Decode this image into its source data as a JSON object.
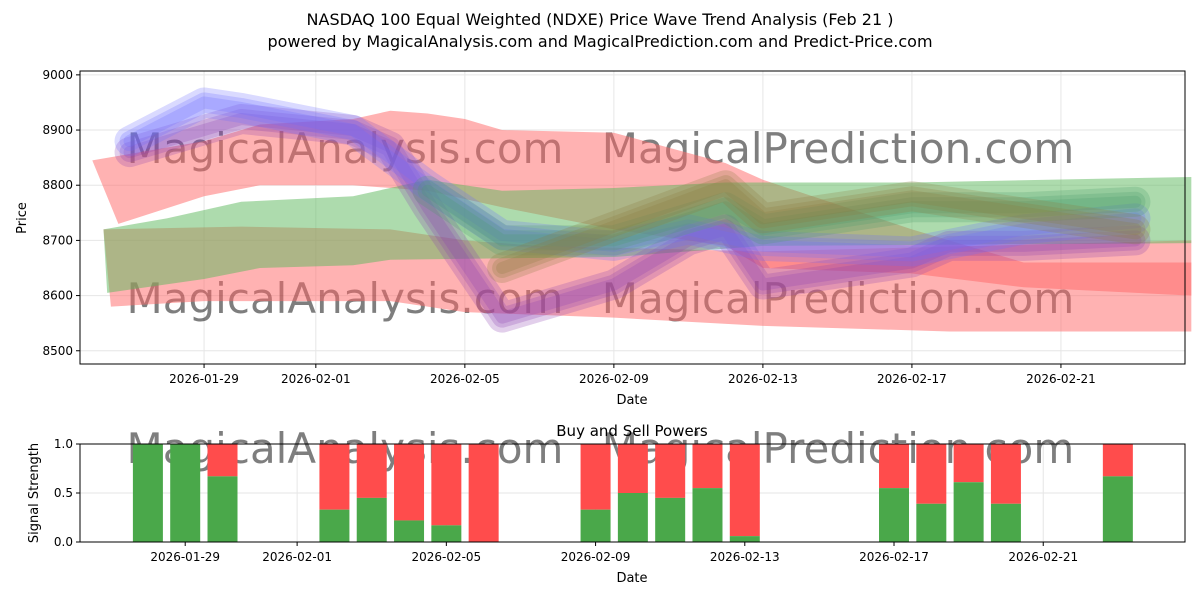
{
  "chart_data": [
    {
      "type": "area",
      "title": "NASDAQ 100 Equal Weighted (NDXE) Price Wave Trend Analysis (Feb 21 )",
      "subtitle": "powered by MagicalAnalysis.com and MagicalPrediction.com and Predict-Price.com",
      "xlabel": "Date",
      "ylabel": "Price",
      "xlim": [
        "2026-01-25.67",
        "2026-02-24.33"
      ],
      "ylim": [
        8476,
        9007
      ],
      "yticks": [
        8500,
        8600,
        8700,
        8800,
        8900,
        9000
      ],
      "xticks": [
        "2026-01-29",
        "2026-02-01",
        "2026-02-05",
        "2026-02-09",
        "2026-02-13",
        "2026-02-17",
        "2026-02-21"
      ],
      "watermarks": [
        "MagicalAnalysis.com",
        "MagicalPrediction.com"
      ],
      "bands": [
        {
          "name": "red-band-upper",
          "color": "#ff6666",
          "upper": [
            [
              "01-26",
              8845
            ],
            [
              "01-29",
              8880
            ],
            [
              "01-30.5",
              8910
            ],
            [
              "02-02",
              8920
            ],
            [
              "02-03",
              8935
            ],
            [
              "02-04",
              8930
            ],
            [
              "02-05",
              8920
            ],
            [
              "02-06",
              8900
            ],
            [
              "02-09",
              8895
            ],
            [
              "02-12",
              8840
            ],
            [
              "02-13",
              8810
            ],
            [
              "02-17",
              8720
            ],
            [
              "02-20",
              8660
            ],
            [
              "02-24.5",
              8660
            ]
          ],
          "lower": [
            [
              "01-26.7",
              8730
            ],
            [
              "01-29",
              8780
            ],
            [
              "01-30.5",
              8800
            ],
            [
              "02-02",
              8800
            ],
            [
              "02-04",
              8790
            ],
            [
              "02-06",
              8760
            ],
            [
              "02-09",
              8720
            ],
            [
              "02-12",
              8690
            ],
            [
              "02-13",
              8650
            ],
            [
              "02-17",
              8640
            ],
            [
              "02-20",
              8615
            ],
            [
              "02-24.5",
              8600
            ]
          ]
        },
        {
          "name": "red-band-lower",
          "color": "#ff6666",
          "upper": [
            [
              "01-26.3",
              8720
            ],
            [
              "01-30",
              8725
            ],
            [
              "02-03",
              8720
            ],
            [
              "02-05",
              8700
            ],
            [
              "02-07",
              8690
            ],
            [
              "02-13",
              8680
            ],
            [
              "02-24.5",
              8700
            ]
          ],
          "lower": [
            [
              "01-26.5",
              8580
            ],
            [
              "01-29",
              8590
            ],
            [
              "02-03",
              8590
            ],
            [
              "02-05",
              8570
            ],
            [
              "02-09",
              8560
            ],
            [
              "02-13",
              8545
            ],
            [
              "02-18",
              8535
            ],
            [
              "02-24.5",
              8535
            ]
          ]
        },
        {
          "name": "green-band",
          "color": "#5cb85c",
          "upper": [
            [
              "01-26.3",
              8720
            ],
            [
              "01-28",
              8740
            ],
            [
              "01-30",
              8770
            ],
            [
              "02-02",
              8780
            ],
            [
              "02-04",
              8810
            ],
            [
              "02-06",
              8790
            ],
            [
              "02-09",
              8795
            ],
            [
              "02-12",
              8805
            ],
            [
              "02-17",
              8805
            ],
            [
              "02-24.5",
              8815
            ]
          ],
          "lower": [
            [
              "01-26.4",
              8605
            ],
            [
              "01-29",
              8630
            ],
            [
              "01-30.5",
              8650
            ],
            [
              "02-02",
              8655
            ],
            [
              "02-03",
              8665
            ],
            [
              "02-09",
              8670
            ],
            [
              "02-13",
              8690
            ],
            [
              "02-24.5",
              8695
            ]
          ]
        }
      ],
      "waves": [
        {
          "name": "purple-wave",
          "color": "#8a3fb0",
          "points": [
            [
              "01-27",
              8860
            ],
            [
              "01-29",
              8900
            ],
            [
              "01-30",
              8920
            ],
            [
              "02-02",
              8900
            ],
            [
              "02-03",
              8870
            ],
            [
              "02-04",
              8760
            ],
            [
              "02-06",
              8560
            ],
            [
              "02-09",
              8620
            ],
            [
              "02-11",
              8700
            ],
            [
              "02-12",
              8720
            ],
            [
              "02-13",
              8620
            ],
            [
              "02-17",
              8660
            ],
            [
              "02-18",
              8690
            ],
            [
              "02-20",
              8690
            ],
            [
              "02-23",
              8700
            ]
          ]
        },
        {
          "name": "blue-wave",
          "color": "#6a6aff",
          "points": [
            [
              "01-27",
              8880
            ],
            [
              "01-29",
              8950
            ],
            [
              "01-30",
              8940
            ],
            [
              "02-02",
              8900
            ],
            [
              "02-04",
              8800
            ],
            [
              "02-06",
              8710
            ],
            [
              "02-09",
              8690
            ],
            [
              "02-11",
              8720
            ],
            [
              "02-13",
              8690
            ],
            [
              "02-17",
              8680
            ],
            [
              "02-20",
              8720
            ],
            [
              "02-23",
              8740
            ]
          ]
        },
        {
          "name": "green-wave",
          "color": "#4a9a6a",
          "points": [
            [
              "02-04",
              8790
            ],
            [
              "02-06",
              8700
            ],
            [
              "02-09",
              8700
            ],
            [
              "02-12",
              8760
            ],
            [
              "02-13",
              8720
            ],
            [
              "02-17",
              8760
            ],
            [
              "02-20",
              8760
            ],
            [
              "02-23",
              8770
            ]
          ]
        },
        {
          "name": "olive-wave",
          "color": "#8a7a40",
          "points": [
            [
              "02-06",
              8650
            ],
            [
              "02-12",
              8800
            ],
            [
              "02-13",
              8740
            ],
            [
              "02-17",
              8780
            ],
            [
              "02-23",
              8720
            ]
          ]
        }
      ]
    },
    {
      "type": "bar",
      "title": "Buy and Sell Powers",
      "xlabel": "Date",
      "ylabel": "Signal Strength",
      "ylim": [
        0,
        1
      ],
      "yticks": [
        "0.0",
        "0.5",
        "1.0"
      ],
      "xticks": [
        "2026-01-29",
        "2026-02-01",
        "2026-02-05",
        "2026-02-09",
        "2026-02-13",
        "2026-02-17",
        "2026-02-21"
      ],
      "buy_color": "#4aa84a",
      "sell_color": "#ff4c4c",
      "categories": [
        "01-28",
        "01-29",
        "01-30",
        "02-02",
        "02-03",
        "02-04",
        "02-05",
        "02-06",
        "02-09",
        "02-10",
        "02-11",
        "02-12",
        "02-13",
        "02-17",
        "02-18",
        "02-19",
        "02-20",
        "02-23"
      ],
      "buy": [
        1.0,
        1.0,
        0.67,
        0.33,
        0.45,
        0.22,
        0.17,
        0.0,
        0.33,
        0.5,
        0.45,
        0.55,
        0.06,
        0.55,
        0.39,
        0.61,
        0.39,
        0.67
      ]
    }
  ]
}
